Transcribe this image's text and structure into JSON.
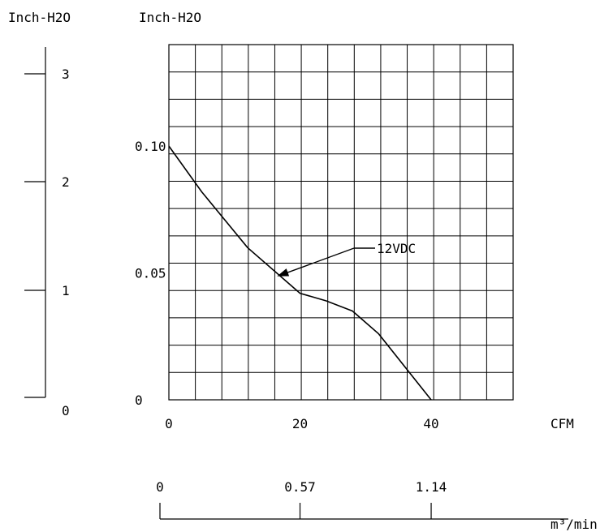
{
  "chart_data": {
    "type": "line",
    "title": "",
    "left_axis": {
      "label": "Inch-H2O",
      "ticks": [
        "0",
        "1",
        "2",
        "3"
      ]
    },
    "y_axis": {
      "label": "Inch-H2O",
      "ticks": [
        "0",
        "0.05",
        "0.10"
      ],
      "ylim": [
        0,
        0.1
      ],
      "max_value": 0.14
    },
    "x_axis": {
      "label": "CFM",
      "ticks": [
        "0",
        "20",
        "40"
      ],
      "xlim": [
        0,
        52.5
      ]
    },
    "bottom_axis": {
      "unit": "m³/min",
      "ticks": [
        "0",
        "0.57",
        "1.14"
      ]
    },
    "grid": true,
    "series": [
      {
        "name": "12VDC",
        "x": [
          0,
          5,
          12,
          20,
          24,
          28,
          32,
          40
        ],
        "y": [
          0.1,
          0.082,
          0.06,
          0.042,
          0.039,
          0.035,
          0.026,
          0
        ]
      }
    ],
    "annotation": {
      "text": "12VDC",
      "x": 16.5,
      "y": 0.05
    }
  }
}
